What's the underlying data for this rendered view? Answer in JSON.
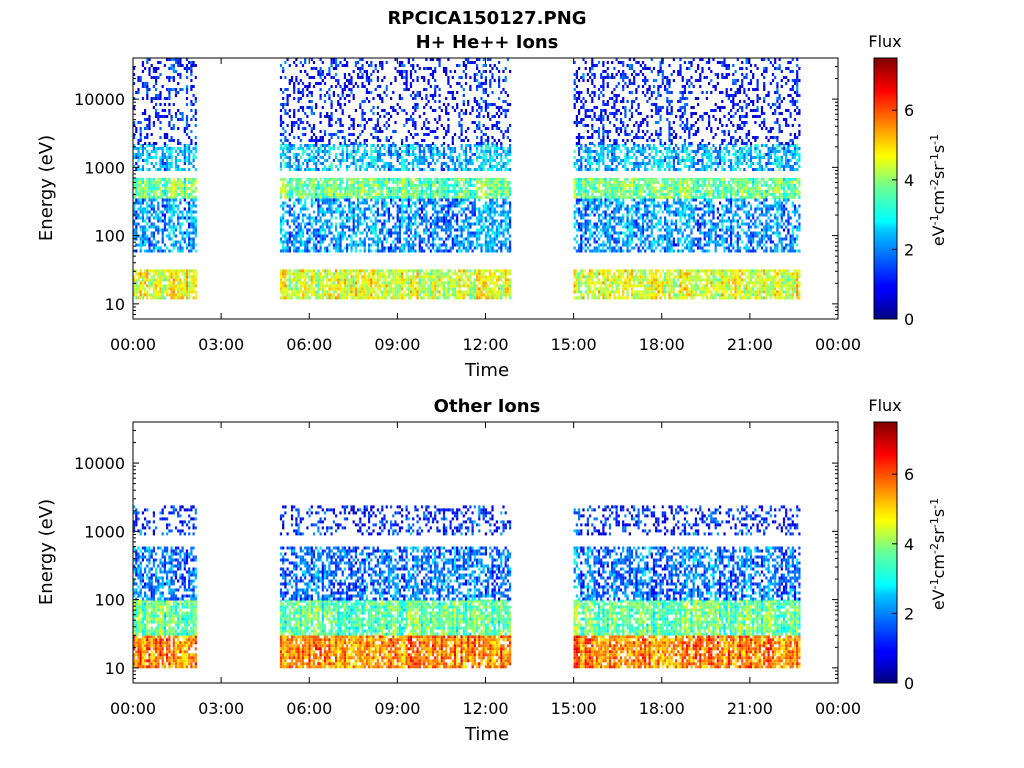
{
  "figure_title": "RPCICA150127.PNG",
  "chart_data": [
    {
      "type": "heatmap",
      "title": "H+ He++ Ions",
      "xlabel": "Time",
      "ylabel": "Energy (eV)",
      "x_ticks": [
        "00:00",
        "03:00",
        "06:00",
        "09:00",
        "12:00",
        "15:00",
        "18:00",
        "21:00",
        "00:00"
      ],
      "xlim_hours": [
        0,
        24
      ],
      "y_scale": "log",
      "y_ticks": [
        "10",
        "100",
        "1000",
        "10000"
      ],
      "ylim": [
        6,
        40000
      ],
      "colorbar": {
        "label": "Flux",
        "unit_base": "eV",
        "unit_parts": [
          "-1",
          "cm",
          "-2",
          "sr",
          "-1",
          "s",
          "-1"
        ],
        "ticks": [
          "0",
          "2",
          "4",
          "6"
        ],
        "range": [
          0,
          7.5
        ],
        "colormap": "jet"
      },
      "data_coverage_hours": [
        [
          0,
          2.1
        ],
        [
          5.0,
          12.8
        ],
        [
          15.0,
          22.7
        ]
      ],
      "bands": [
        {
          "e_lo": 12,
          "e_hi": 32,
          "level": 4.4
        },
        {
          "e_lo": 350,
          "e_hi": 700,
          "level": 3.6
        },
        {
          "e_lo": 900,
          "e_hi": 2200,
          "level": 2.3
        },
        {
          "e_lo": 60,
          "e_hi": 350,
          "level": 2.0
        },
        {
          "e_lo": 2200,
          "e_hi": 40000,
          "level": 0.9
        }
      ]
    },
    {
      "type": "heatmap",
      "title": "Other Ions",
      "xlabel": "Time",
      "ylabel": "Energy (eV)",
      "x_ticks": [
        "00:00",
        "03:00",
        "06:00",
        "09:00",
        "12:00",
        "15:00",
        "18:00",
        "21:00",
        "00:00"
      ],
      "xlim_hours": [
        0,
        24
      ],
      "y_scale": "log",
      "y_ticks": [
        "10",
        "100",
        "1000",
        "10000"
      ],
      "ylim": [
        6,
        40000
      ],
      "colorbar": {
        "label": "Flux",
        "unit_base": "eV",
        "unit_parts": [
          "-1",
          "cm",
          "-2",
          "sr",
          "-1",
          "s",
          "-1"
        ],
        "ticks": [
          "0",
          "2",
          "4",
          "6"
        ],
        "range": [
          0,
          7.5
        ],
        "colormap": "jet"
      },
      "data_coverage_hours": [
        [
          0,
          2.1
        ],
        [
          5.0,
          12.8
        ],
        [
          15.0,
          22.7
        ]
      ],
      "bands": [
        {
          "e_lo": 10,
          "e_hi": 30,
          "level": 5.6
        },
        {
          "e_lo": 30,
          "e_hi": 100,
          "level": 3.6
        },
        {
          "e_lo": 100,
          "e_hi": 600,
          "level": 1.8
        },
        {
          "e_lo": 900,
          "e_hi": 2400,
          "level": 1.2
        }
      ]
    }
  ]
}
